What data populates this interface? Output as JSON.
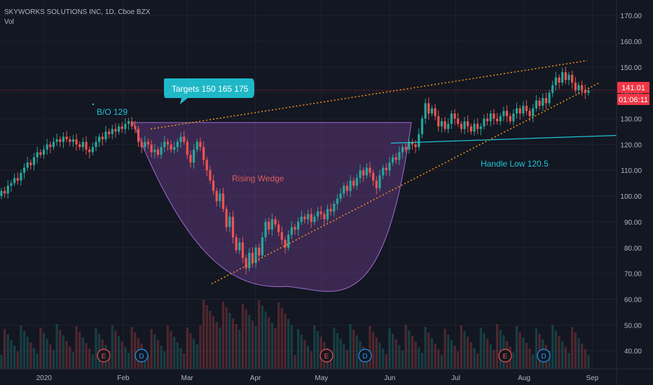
{
  "header": {
    "symbol_line": "SKYWORKS SOLUTIONS INC, 1D, Cboe BZX",
    "volume_label": "Vol"
  },
  "price_axis": {
    "ticks": [
      "170.00",
      "160.00",
      "150.00",
      "140.00",
      "130.00",
      "120.00",
      "110.00",
      "100.00",
      "90.00",
      "80.00",
      "70.00",
      "60.00",
      "50.00",
      "40.00"
    ],
    "last_price": "141.01",
    "countdown": "01:06:11"
  },
  "time_axis": {
    "labels": [
      "2020",
      "Feb",
      "Mar",
      "Apr",
      "May",
      "Jun",
      "Jul",
      "Aug",
      "Sep"
    ]
  },
  "annotations": {
    "targets_callout": "Targets  150  165  175",
    "breakout_label": "B/O 129",
    "pattern_label": "Rising Wedge",
    "handle_label": "Handle Low 120.5"
  },
  "events": [
    {
      "type": "E",
      "label": "E"
    },
    {
      "type": "D",
      "label": "D"
    },
    {
      "type": "E",
      "label": "E"
    },
    {
      "type": "D",
      "label": "D"
    },
    {
      "type": "E",
      "label": "E"
    },
    {
      "type": "D",
      "label": "D"
    }
  ],
  "colors": {
    "background": "#131722",
    "up": "#26a69a",
    "down": "#ef5350",
    "wedge_line": "#f7931a",
    "cup_fill": "#6a3e8c",
    "handle_line": "#20c4d4",
    "callout": "#1fb8c8",
    "pattern_label": "#e05a5a",
    "price_badge": "#f23645"
  },
  "chart_data": {
    "type": "candlestick",
    "y_range": [
      33,
      176
    ],
    "current_price": 141.01,
    "x_month_ticks": [
      {
        "label": "2020",
        "day": 20
      },
      {
        "label": "Feb",
        "day": 56
      },
      {
        "label": "Mar",
        "day": 85
      },
      {
        "label": "Apr",
        "day": 116
      },
      {
        "label": "May",
        "day": 146
      },
      {
        "label": "Jun",
        "day": 177
      },
      {
        "label": "Jul",
        "day": 207
      },
      {
        "label": "Aug",
        "day": 238
      },
      {
        "label": "Sep",
        "day": 269
      }
    ],
    "x_range_days": [
      0,
      280
    ],
    "candles": [
      [
        0,
        100,
        102
      ],
      [
        1,
        102,
        101
      ],
      [
        2,
        101,
        104
      ],
      [
        3,
        104,
        105
      ],
      [
        4,
        105,
        107
      ],
      [
        5,
        107,
        106
      ],
      [
        6,
        106,
        109
      ],
      [
        7,
        109,
        111
      ],
      [
        8,
        111,
        113
      ],
      [
        9,
        113,
        112
      ],
      [
        10,
        112,
        115
      ],
      [
        11,
        115,
        117
      ],
      [
        12,
        117,
        116
      ],
      [
        13,
        116,
        118
      ],
      [
        14,
        118,
        120
      ],
      [
        15,
        120,
        119
      ],
      [
        16,
        119,
        121
      ],
      [
        17,
        121,
        122
      ],
      [
        18,
        122,
        121
      ],
      [
        19,
        121,
        123
      ],
      [
        20,
        123,
        122
      ],
      [
        21,
        122,
        121
      ],
      [
        22,
        121,
        122
      ],
      [
        23,
        122,
        120
      ],
      [
        24,
        120,
        119
      ],
      [
        25,
        119,
        121
      ],
      [
        26,
        121,
        118
      ],
      [
        27,
        118,
        117
      ],
      [
        28,
        117,
        119
      ],
      [
        29,
        119,
        121
      ],
      [
        30,
        121,
        123
      ],
      [
        31,
        123,
        122
      ],
      [
        32,
        122,
        125
      ],
      [
        33,
        125,
        124
      ],
      [
        34,
        124,
        126
      ],
      [
        35,
        126,
        125
      ],
      [
        36,
        125,
        127
      ],
      [
        37,
        127,
        126
      ],
      [
        38,
        126,
        128
      ],
      [
        39,
        128,
        129
      ],
      [
        40,
        129,
        127
      ],
      [
        41,
        127,
        126
      ],
      [
        42,
        126,
        121
      ],
      [
        43,
        121,
        119
      ],
      [
        44,
        119,
        121
      ],
      [
        45,
        121,
        120
      ],
      [
        46,
        120,
        117
      ],
      [
        47,
        117,
        118
      ],
      [
        48,
        118,
        116
      ],
      [
        49,
        116,
        119
      ],
      [
        50,
        119,
        121
      ],
      [
        51,
        121,
        120
      ],
      [
        52,
        120,
        118
      ],
      [
        53,
        118,
        119
      ],
      [
        54,
        119,
        121
      ],
      [
        55,
        121,
        123
      ],
      [
        56,
        123,
        121
      ],
      [
        57,
        121,
        116
      ],
      [
        58,
        116,
        113
      ],
      [
        59,
        113,
        118
      ],
      [
        60,
        118,
        121
      ],
      [
        61,
        121,
        119
      ],
      [
        62,
        119,
        114
      ],
      [
        63,
        114,
        110
      ],
      [
        64,
        110,
        106
      ],
      [
        65,
        106,
        102
      ],
      [
        66,
        102,
        98
      ],
      [
        67,
        98,
        101
      ],
      [
        68,
        101,
        95
      ],
      [
        69,
        95,
        88
      ],
      [
        70,
        88,
        92
      ],
      [
        71,
        92,
        84
      ],
      [
        72,
        84,
        79
      ],
      [
        73,
        79,
        82
      ],
      [
        74,
        82,
        76
      ],
      [
        75,
        76,
        72
      ],
      [
        76,
        72,
        78
      ],
      [
        77,
        78,
        74
      ],
      [
        78,
        74,
        80
      ],
      [
        79,
        80,
        77
      ],
      [
        80,
        77,
        84
      ],
      [
        81,
        84,
        90
      ],
      [
        82,
        90,
        87
      ],
      [
        83,
        87,
        91
      ],
      [
        84,
        91,
        89
      ],
      [
        85,
        89,
        86
      ],
      [
        86,
        86,
        83
      ],
      [
        87,
        83,
        80
      ],
      [
        88,
        80,
        85
      ],
      [
        89,
        85,
        88
      ],
      [
        90,
        88,
        87
      ],
      [
        91,
        87,
        90
      ],
      [
        92,
        90,
        92
      ],
      [
        93,
        92,
        91
      ],
      [
        94,
        91,
        93
      ],
      [
        95,
        93,
        90
      ],
      [
        96,
        90,
        92
      ],
      [
        97,
        92,
        94
      ],
      [
        98,
        94,
        93
      ],
      [
        99,
        93,
        91
      ],
      [
        100,
        91,
        95
      ],
      [
        101,
        95,
        94
      ],
      [
        102,
        94,
        97
      ],
      [
        103,
        97,
        99
      ],
      [
        104,
        99,
        101
      ],
      [
        105,
        101,
        104
      ],
      [
        106,
        104,
        102
      ],
      [
        107,
        102,
        106
      ],
      [
        108,
        106,
        104
      ],
      [
        109,
        104,
        107
      ],
      [
        110,
        107,
        110
      ],
      [
        111,
        110,
        108
      ],
      [
        112,
        108,
        111
      ],
      [
        113,
        111,
        109
      ],
      [
        114,
        109,
        106
      ],
      [
        115,
        106,
        103
      ],
      [
        116,
        103,
        108
      ],
      [
        117,
        108,
        111
      ],
      [
        118,
        111,
        110
      ],
      [
        119,
        110,
        113
      ],
      [
        120,
        113,
        115
      ],
      [
        121,
        115,
        114
      ],
      [
        122,
        114,
        117
      ],
      [
        123,
        117,
        119
      ],
      [
        124,
        119,
        118
      ],
      [
        125,
        118,
        121
      ],
      [
        126,
        121,
        120
      ],
      [
        127,
        120,
        119
      ],
      [
        128,
        119,
        124
      ],
      [
        129,
        124,
        130
      ],
      [
        130,
        130,
        136
      ],
      [
        131,
        136,
        132
      ],
      [
        132,
        132,
        134
      ],
      [
        133,
        134,
        131
      ],
      [
        134,
        131,
        127
      ],
      [
        135,
        127,
        129
      ],
      [
        136,
        129,
        126
      ],
      [
        137,
        126,
        128
      ],
      [
        138,
        128,
        132
      ],
      [
        139,
        132,
        130
      ],
      [
        140,
        130,
        128
      ],
      [
        141,
        128,
        126
      ],
      [
        142,
        126,
        129
      ],
      [
        143,
        129,
        127
      ],
      [
        144,
        127,
        125
      ],
      [
        145,
        125,
        128
      ],
      [
        146,
        128,
        126
      ],
      [
        147,
        126,
        127
      ],
      [
        148,
        127,
        130
      ],
      [
        149,
        130,
        129
      ],
      [
        150,
        129,
        132
      ],
      [
        151,
        132,
        130
      ],
      [
        152,
        130,
        129
      ],
      [
        153,
        129,
        131
      ],
      [
        154,
        131,
        133
      ],
      [
        155,
        133,
        131
      ],
      [
        156,
        131,
        129
      ],
      [
        157,
        129,
        132
      ],
      [
        158,
        132,
        134
      ],
      [
        159,
        134,
        132
      ],
      [
        160,
        132,
        135
      ],
      [
        161,
        135,
        133
      ],
      [
        162,
        133,
        131
      ],
      [
        163,
        131,
        134
      ],
      [
        164,
        134,
        137
      ],
      [
        165,
        137,
        135
      ],
      [
        166,
        135,
        138
      ],
      [
        167,
        138,
        136
      ],
      [
        168,
        136,
        140
      ],
      [
        169,
        140,
        143
      ],
      [
        170,
        143,
        146
      ],
      [
        171,
        146,
        144
      ],
      [
        172,
        144,
        148
      ],
      [
        173,
        148,
        145
      ],
      [
        174,
        145,
        147
      ],
      [
        175,
        147,
        144
      ],
      [
        176,
        144,
        141
      ],
      [
        177,
        141,
        143
      ],
      [
        178,
        143,
        141
      ],
      [
        179,
        141,
        140
      ],
      [
        180,
        140,
        141
      ]
    ]
  }
}
